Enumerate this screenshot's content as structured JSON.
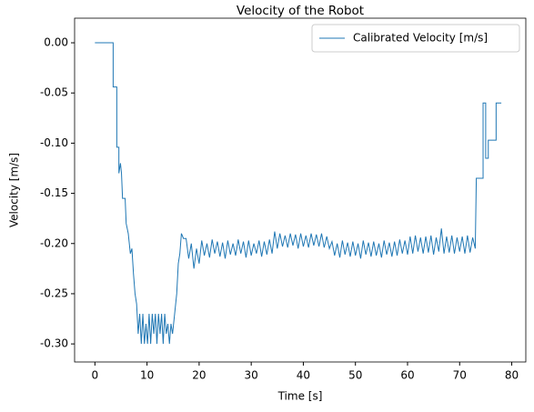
{
  "chart_data": {
    "type": "line",
    "title": "Velocity of the Robot",
    "xlabel": "Time [s]",
    "ylabel": "Velocity [m/s]",
    "legend": "upper right",
    "grid": false,
    "xlim": [
      -3.9,
      82.7
    ],
    "ylim": [
      -0.318,
      0.0245
    ],
    "xticks": [
      0,
      10,
      20,
      30,
      40,
      50,
      60,
      70,
      80
    ],
    "yticks": [
      {
        "value": 0,
        "label": "0.00"
      },
      {
        "value": -0.05,
        "label": "-0.05"
      },
      {
        "value": -0.1,
        "label": "-0.10"
      },
      {
        "value": -0.15,
        "label": "-0.15"
      },
      {
        "value": -0.2,
        "label": "-0.20"
      },
      {
        "value": -0.25,
        "label": "-0.25"
      },
      {
        "value": -0.3,
        "label": "-0.30"
      }
    ],
    "x": [
      0,
      3.5,
      3.5,
      4.2,
      4.2,
      4.6,
      4.6,
      4.9,
      5.1,
      5.3,
      5.8,
      6.0,
      6.4,
      6.8,
      7.1,
      7.4,
      7.7,
      8.0,
      8.3,
      8.6,
      8.9,
      9.2,
      9.5,
      9.8,
      10.1,
      10.4,
      10.7,
      11.0,
      11.3,
      11.6,
      11.9,
      12.2,
      12.5,
      12.8,
      13.1,
      13.4,
      13.7,
      14.0,
      14.3,
      14.6,
      14.9,
      15.3,
      15.7,
      16.0,
      16.3,
      16.6,
      17.0,
      17.5,
      18,
      18.5,
      19,
      19.5,
      20,
      20.5,
      21,
      21.5,
      22,
      22.5,
      23,
      23.5,
      24,
      24.5,
      25,
      25.5,
      26,
      26.5,
      27,
      27.5,
      28,
      28.5,
      29,
      29.5,
      30,
      30.5,
      31,
      31.5,
      32,
      32.5,
      33,
      33.5,
      34,
      34.5,
      35,
      35.5,
      36,
      36.5,
      37,
      37.5,
      38,
      38.5,
      39,
      39.5,
      40,
      40.5,
      41,
      41.5,
      42,
      42.5,
      43,
      43.5,
      44,
      44.5,
      45,
      45.5,
      46,
      46.5,
      47,
      47.5,
      48,
      48.5,
      49,
      49.5,
      50,
      50.5,
      51,
      51.5,
      52,
      52.5,
      53,
      53.5,
      54,
      54.5,
      55,
      55.5,
      56,
      56.5,
      57,
      57.5,
      58,
      58.5,
      59,
      59.5,
      60,
      60.5,
      61,
      61.5,
      62,
      62.5,
      63,
      63.5,
      64,
      64.5,
      65,
      65.5,
      66,
      66.5,
      67,
      67.5,
      68,
      68.5,
      69,
      69.5,
      70,
      70.5,
      71,
      71.5,
      72,
      72.5,
      73,
      73.2,
      74.5,
      74.5,
      75,
      75,
      75.5,
      75.5,
      77,
      77,
      78
    ],
    "series": [
      {
        "name": "Calibrated Velocity [m/s]",
        "color": "#1f77b4",
        "values": [
          0,
          0,
          -0.044,
          -0.044,
          -0.104,
          -0.104,
          -0.13,
          -0.12,
          -0.13,
          -0.155,
          -0.155,
          -0.18,
          -0.19,
          -0.21,
          -0.205,
          -0.23,
          -0.25,
          -0.26,
          -0.29,
          -0.27,
          -0.3,
          -0.27,
          -0.3,
          -0.28,
          -0.3,
          -0.27,
          -0.3,
          -0.27,
          -0.29,
          -0.27,
          -0.3,
          -0.27,
          -0.29,
          -0.27,
          -0.3,
          -0.27,
          -0.29,
          -0.28,
          -0.3,
          -0.28,
          -0.29,
          -0.27,
          -0.25,
          -0.22,
          -0.21,
          -0.19,
          -0.195,
          -0.195,
          -0.215,
          -0.2,
          -0.225,
          -0.205,
          -0.22,
          -0.197,
          -0.212,
          -0.2,
          -0.214,
          -0.196,
          -0.21,
          -0.198,
          -0.213,
          -0.199,
          -0.215,
          -0.197,
          -0.211,
          -0.2,
          -0.212,
          -0.196,
          -0.21,
          -0.198,
          -0.214,
          -0.197,
          -0.212,
          -0.2,
          -0.21,
          -0.197,
          -0.213,
          -0.198,
          -0.211,
          -0.196,
          -0.21,
          -0.188,
          -0.205,
          -0.19,
          -0.203,
          -0.192,
          -0.204,
          -0.19,
          -0.202,
          -0.191,
          -0.205,
          -0.19,
          -0.203,
          -0.192,
          -0.204,
          -0.19,
          -0.202,
          -0.191,
          -0.203,
          -0.19,
          -0.204,
          -0.193,
          -0.205,
          -0.198,
          -0.212,
          -0.2,
          -0.214,
          -0.197,
          -0.211,
          -0.199,
          -0.213,
          -0.198,
          -0.212,
          -0.2,
          -0.215,
          -0.197,
          -0.211,
          -0.199,
          -0.213,
          -0.198,
          -0.212,
          -0.2,
          -0.214,
          -0.197,
          -0.211,
          -0.199,
          -0.213,
          -0.198,
          -0.212,
          -0.196,
          -0.21,
          -0.197,
          -0.211,
          -0.193,
          -0.21,
          -0.192,
          -0.208,
          -0.194,
          -0.21,
          -0.193,
          -0.209,
          -0.192,
          -0.211,
          -0.194,
          -0.208,
          -0.185,
          -0.21,
          -0.193,
          -0.209,
          -0.192,
          -0.21,
          -0.194,
          -0.208,
          -0.193,
          -0.21,
          -0.192,
          -0.209,
          -0.194,
          -0.205,
          -0.135,
          -0.135,
          -0.06,
          -0.06,
          -0.115,
          -0.115,
          -0.097,
          -0.097,
          -0.06,
          -0.06
        ]
      }
    ]
  }
}
